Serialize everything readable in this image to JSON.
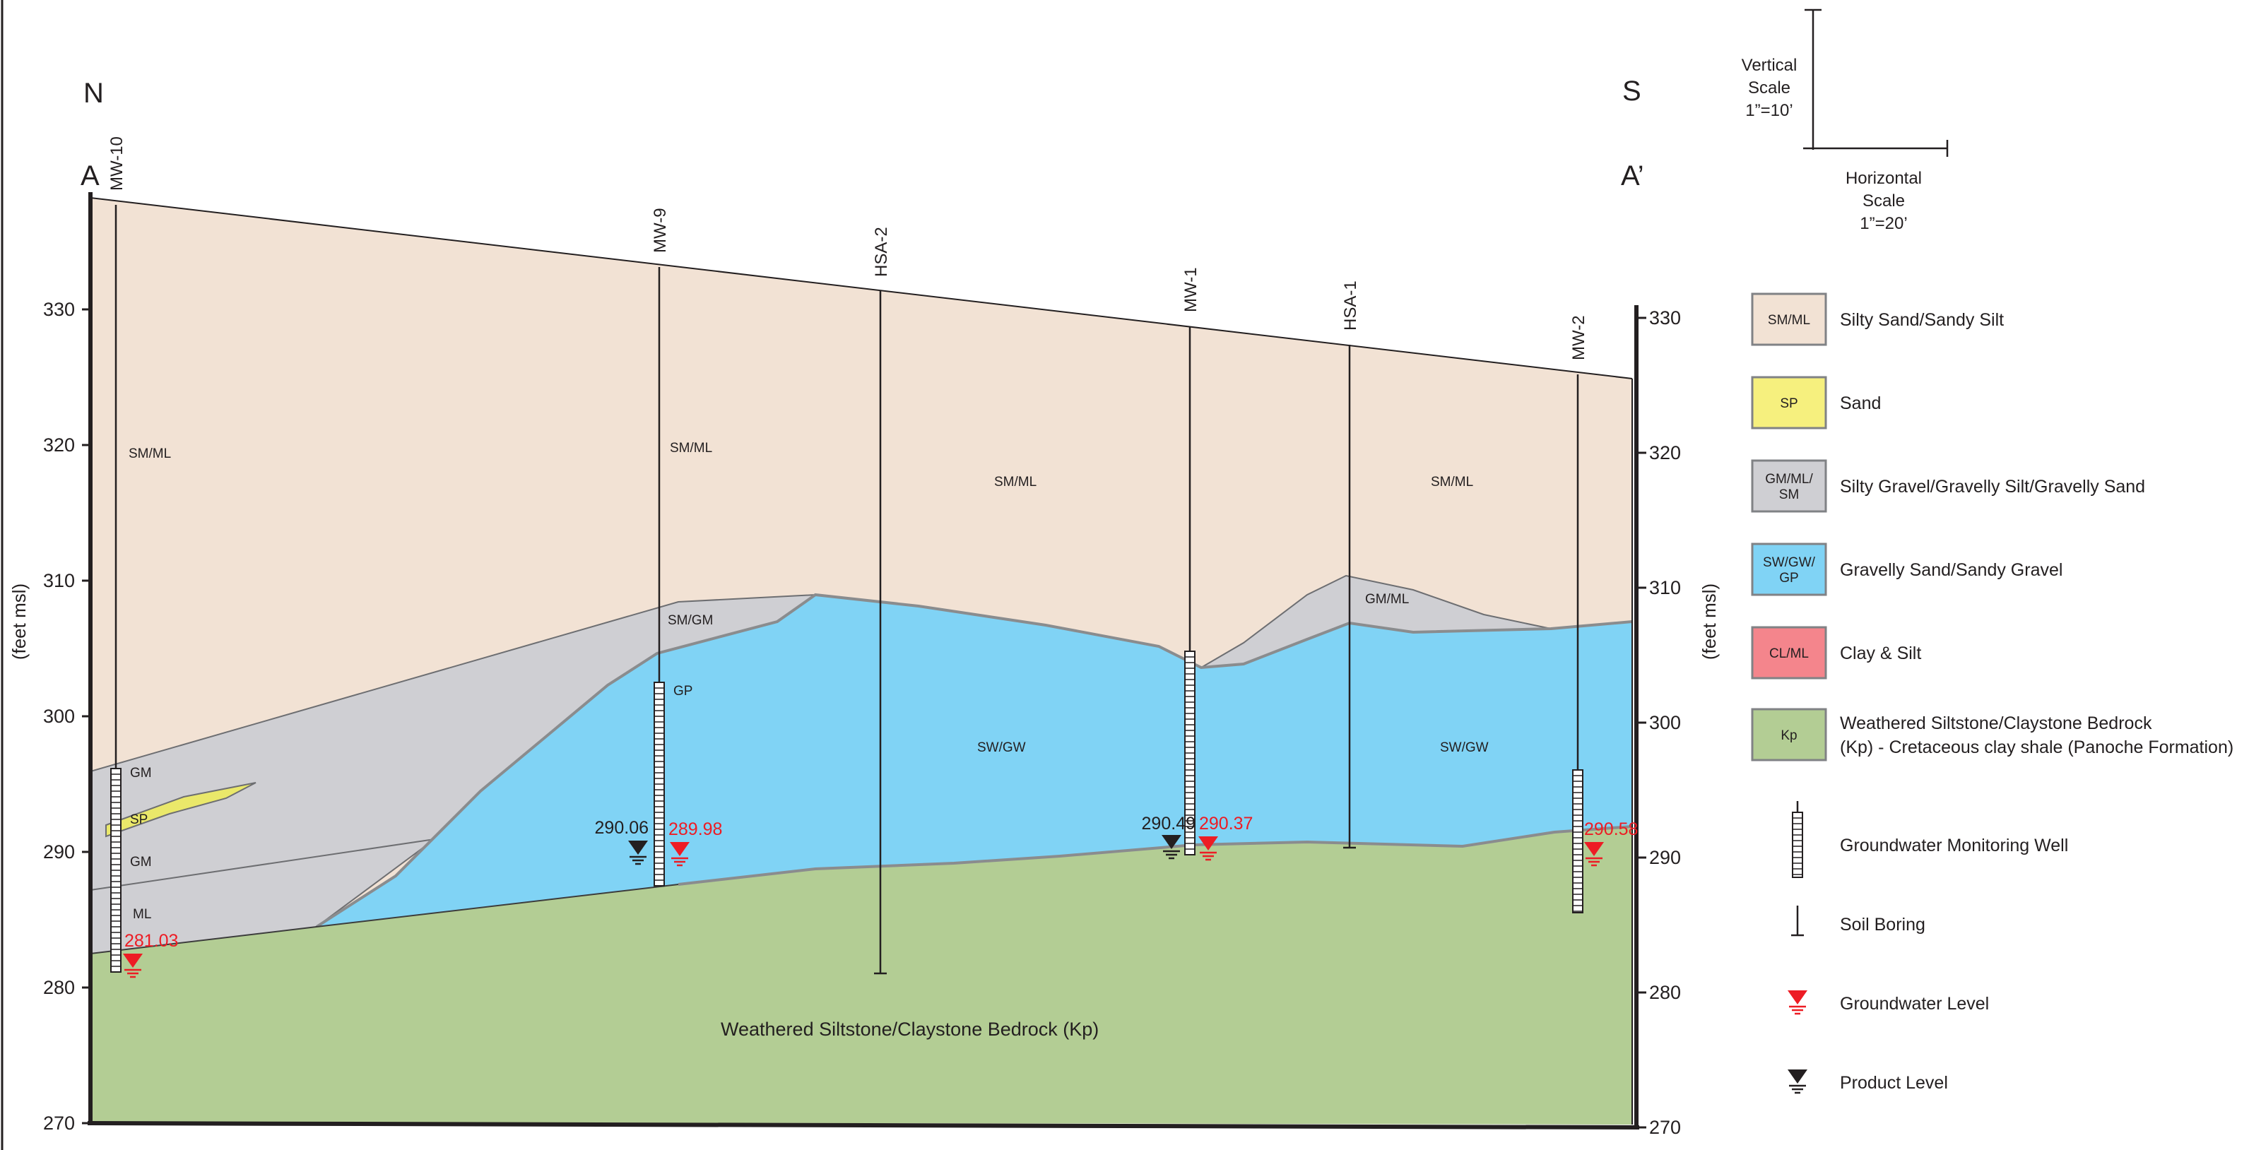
{
  "orientation": {
    "north": "N",
    "south": "S",
    "left_end": "A",
    "right_end": "A’"
  },
  "axis": {
    "unit_label": "(feet msl)",
    "ticks": [
      "330",
      "320",
      "310",
      "300",
      "290",
      "280",
      "270"
    ]
  },
  "scale": {
    "vertical": [
      "Vertical",
      "Scale",
      "1”=10’"
    ],
    "horizontal": [
      "Horizontal",
      "Scale",
      "1”=20’"
    ]
  },
  "wells": [
    {
      "name": "MW-10",
      "type": "monitoring-well"
    },
    {
      "name": "MW-9",
      "type": "monitoring-well"
    },
    {
      "name": "HSA-2",
      "type": "soil-boring"
    },
    {
      "name": "MW-1",
      "type": "monitoring-well"
    },
    {
      "name": "HSA-1",
      "type": "soil-boring"
    },
    {
      "name": "MW-2",
      "type": "monitoring-well"
    }
  ],
  "levels": {
    "mw10_groundwater": "281.03",
    "mw9_product": "290.06",
    "mw9_groundwater": "289.98",
    "mw1_product": "290.49",
    "mw1_groundwater": "290.37",
    "mw2_groundwater": "290.58"
  },
  "layer_labels": {
    "smml_1": "SM/ML",
    "smml_2": "SM/ML",
    "smml_3": "SM/ML",
    "smml_4": "SM/ML",
    "gm_1": "GM",
    "sp_1": "SP",
    "gm_2": "GM",
    "ml_1": "ML",
    "smgm": "SM/GM",
    "gp": "GP",
    "swgw_1": "SW/GW",
    "swgw_2": "SW/GW",
    "gmml": "GM/ML",
    "bedrock": "Weathered Siltstone/Claystone Bedrock (Kp)"
  },
  "colors": {
    "silty_sand": "#f2e2d4",
    "sand": "#eae86a",
    "gravel": "#cfcfd3",
    "gravelly_sand": "#80d3f5",
    "clay_silt": "#f4858c",
    "bedrock": "#b3cd94",
    "groundwater_symbol": "#ed1c24",
    "product_symbol": "#231f20"
  },
  "legend": [
    {
      "code": [
        "SM/ML"
      ],
      "label": [
        "Silty Sand/Sandy Silt"
      ],
      "color": "#f2e2d4"
    },
    {
      "code": [
        "SP"
      ],
      "label": [
        "Sand"
      ],
      "color": "#f6f07e"
    },
    {
      "code": [
        "GM/ML/",
        "SM"
      ],
      "label": [
        "Silty Gravel/Gravelly Silt/Gravelly Sand"
      ],
      "color": "#cfcfd3"
    },
    {
      "code": [
        "SW/GW/",
        "GP"
      ],
      "label": [
        "Gravelly Sand/Sandy Gravel"
      ],
      "color": "#80d3f5"
    },
    {
      "code": [
        "CL/ML"
      ],
      "label": [
        "Clay & Silt"
      ],
      "color": "#f4858c"
    },
    {
      "code": [
        "Kp"
      ],
      "label": [
        "Weathered Siltstone/Claystone Bedrock",
        "(Kp) - Cretaceous clay shale (Panoche Formation)"
      ],
      "color": "#b3cd94"
    }
  ],
  "legend_symbols": [
    {
      "icon": "monitoring-well-icon",
      "label": "Groundwater Monitoring Well"
    },
    {
      "icon": "soil-boring-icon",
      "label": "Soil Boring"
    },
    {
      "icon": "groundwater-level-icon",
      "label": "Groundwater Level"
    },
    {
      "icon": "product-level-icon",
      "label": "Product Level"
    }
  ]
}
